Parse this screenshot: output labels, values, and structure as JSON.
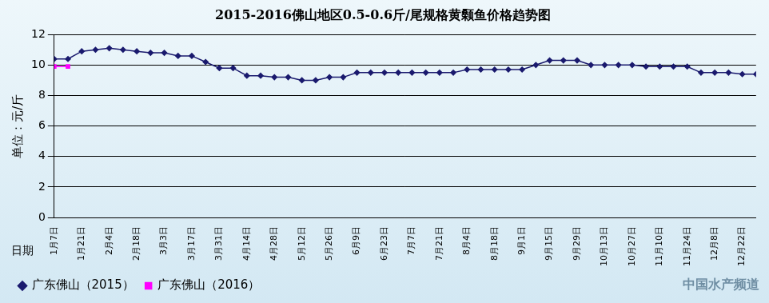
{
  "chart_data": {
    "type": "line",
    "title": "2015-2016佛山地区0.5-0.6斤/尾规格黄颡鱼价格趋势图",
    "y_label": "单位：元/斤",
    "x_label": "日期",
    "source": "中国水产频道",
    "categories": [
      "1月7日",
      null,
      "1月21日",
      null,
      "2月4日",
      null,
      "2月18日",
      null,
      "3月3日",
      null,
      "3月17日",
      null,
      "3月31日",
      null,
      "4月14日",
      null,
      "4月28日",
      null,
      "5月12日",
      null,
      "5月26日",
      null,
      "6月9日",
      null,
      "6月23日",
      null,
      "7月7日",
      null,
      "7月21日",
      null,
      "8月4日",
      null,
      "8月18日",
      null,
      "9月1日",
      null,
      "9月15日",
      null,
      "9月29日",
      null,
      "10月13日",
      null,
      "10月27日",
      null,
      "11月10日",
      null,
      "11月24日",
      null,
      "12月8日",
      null,
      "12月22日",
      null
    ],
    "series": [
      {
        "name": "广东佛山（2015）",
        "color": "#1a1a6e",
        "marker": "diamond",
        "values": [
          10.4,
          10.4,
          10.9,
          11.0,
          11.1,
          11.0,
          10.9,
          10.8,
          10.8,
          10.6,
          10.6,
          10.2,
          9.8,
          9.8,
          9.3,
          9.3,
          9.2,
          9.2,
          9.0,
          9.0,
          9.2,
          9.2,
          9.5,
          9.5,
          9.5,
          9.5,
          9.5,
          9.5,
          9.5,
          9.5,
          9.7,
          9.7,
          9.7,
          9.7,
          9.7,
          10.0,
          10.3,
          10.3,
          10.3,
          10.0,
          10.0,
          10.0,
          10.0,
          9.9,
          9.9,
          9.9,
          9.9,
          9.5,
          9.5,
          9.5,
          9.4,
          9.4
        ]
      },
      {
        "name": "广东佛山（2016）",
        "color": "#ff00ff",
        "marker": "square",
        "values": [
          9.9,
          9.9,
          null,
          null,
          null,
          null,
          null,
          null,
          null,
          null,
          null,
          null,
          null,
          null,
          null,
          null,
          null,
          null,
          null,
          null,
          null,
          null,
          null,
          null,
          null,
          null,
          null,
          null,
          null,
          null,
          null,
          null,
          null,
          null,
          null,
          null,
          null,
          null,
          null,
          null,
          null,
          null,
          null,
          null,
          null,
          null,
          null,
          null,
          null,
          null,
          null,
          null
        ]
      }
    ],
    "ylim": [
      0,
      12
    ],
    "yticks": [
      0,
      2,
      4,
      6,
      8,
      10,
      12
    ],
    "grid": true,
    "legend": "bottom-left"
  }
}
